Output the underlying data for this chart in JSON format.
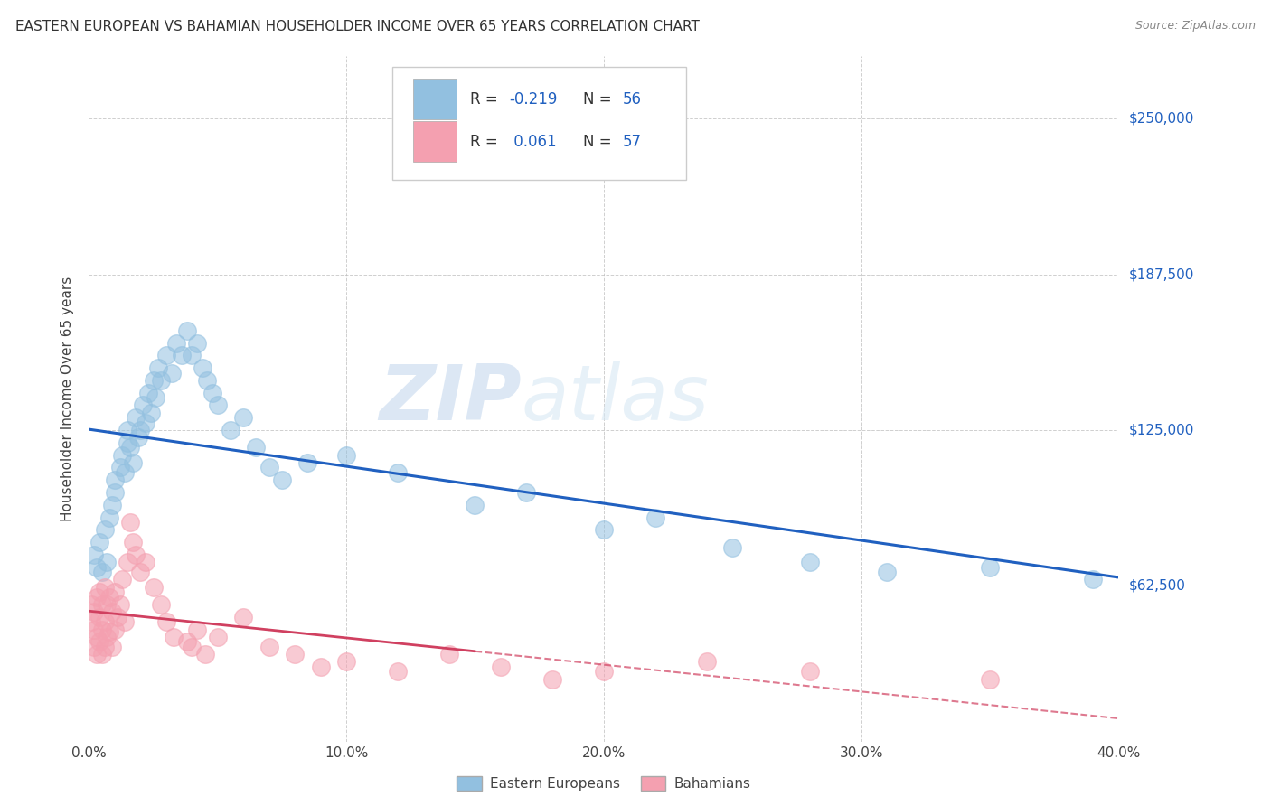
{
  "title": "EASTERN EUROPEAN VS BAHAMIAN HOUSEHOLDER INCOME OVER 65 YEARS CORRELATION CHART",
  "source": "Source: ZipAtlas.com",
  "ylabel": "Householder Income Over 65 years",
  "x_min": 0.0,
  "x_max": 0.4,
  "y_min": 0,
  "y_max": 275000,
  "y_ticks": [
    62500,
    125000,
    187500,
    250000
  ],
  "x_tick_labels": [
    "0.0%",
    "10.0%",
    "20.0%",
    "30.0%",
    "40.0%"
  ],
  "x_tick_vals": [
    0.0,
    0.1,
    0.2,
    0.3,
    0.4
  ],
  "blue_color": "#92c0e0",
  "pink_color": "#f4a0b0",
  "blue_line_color": "#2060c0",
  "pink_line_color": "#d04060",
  "watermark_zip": "ZIP",
  "watermark_atlas": "atlas",
  "background_color": "#ffffff",
  "grid_color": "#bbbbbb",
  "eastern_x": [
    0.002,
    0.003,
    0.004,
    0.005,
    0.006,
    0.007,
    0.008,
    0.009,
    0.01,
    0.01,
    0.012,
    0.013,
    0.014,
    0.015,
    0.015,
    0.016,
    0.017,
    0.018,
    0.019,
    0.02,
    0.021,
    0.022,
    0.023,
    0.024,
    0.025,
    0.026,
    0.027,
    0.028,
    0.03,
    0.032,
    0.034,
    0.036,
    0.038,
    0.04,
    0.042,
    0.044,
    0.046,
    0.048,
    0.05,
    0.055,
    0.06,
    0.065,
    0.07,
    0.075,
    0.085,
    0.1,
    0.12,
    0.15,
    0.17,
    0.2,
    0.22,
    0.25,
    0.28,
    0.31,
    0.35,
    0.39
  ],
  "eastern_y": [
    75000,
    70000,
    80000,
    68000,
    85000,
    72000,
    90000,
    95000,
    100000,
    105000,
    110000,
    115000,
    108000,
    120000,
    125000,
    118000,
    112000,
    130000,
    122000,
    125000,
    135000,
    128000,
    140000,
    132000,
    145000,
    138000,
    150000,
    145000,
    155000,
    148000,
    160000,
    155000,
    165000,
    155000,
    160000,
    150000,
    145000,
    140000,
    135000,
    125000,
    130000,
    118000,
    110000,
    105000,
    112000,
    115000,
    108000,
    95000,
    100000,
    85000,
    90000,
    78000,
    72000,
    68000,
    70000,
    65000
  ],
  "bahamian_x": [
    0.001,
    0.001,
    0.002,
    0.002,
    0.002,
    0.003,
    0.003,
    0.003,
    0.004,
    0.004,
    0.004,
    0.005,
    0.005,
    0.005,
    0.006,
    0.006,
    0.006,
    0.007,
    0.007,
    0.008,
    0.008,
    0.009,
    0.009,
    0.01,
    0.01,
    0.011,
    0.012,
    0.013,
    0.014,
    0.015,
    0.016,
    0.017,
    0.018,
    0.02,
    0.022,
    0.025,
    0.028,
    0.03,
    0.033,
    0.038,
    0.04,
    0.042,
    0.045,
    0.05,
    0.06,
    0.07,
    0.08,
    0.09,
    0.1,
    0.12,
    0.14,
    0.16,
    0.18,
    0.2,
    0.24,
    0.28,
    0.35
  ],
  "bahamian_y": [
    55000,
    48000,
    52000,
    45000,
    38000,
    58000,
    42000,
    35000,
    60000,
    50000,
    40000,
    55000,
    45000,
    35000,
    62000,
    48000,
    38000,
    55000,
    42000,
    58000,
    44000,
    52000,
    38000,
    60000,
    45000,
    50000,
    55000,
    65000,
    48000,
    72000,
    88000,
    80000,
    75000,
    68000,
    72000,
    62000,
    55000,
    48000,
    42000,
    40000,
    38000,
    45000,
    35000,
    42000,
    50000,
    38000,
    35000,
    30000,
    32000,
    28000,
    35000,
    30000,
    25000,
    28000,
    32000,
    28000,
    25000
  ]
}
